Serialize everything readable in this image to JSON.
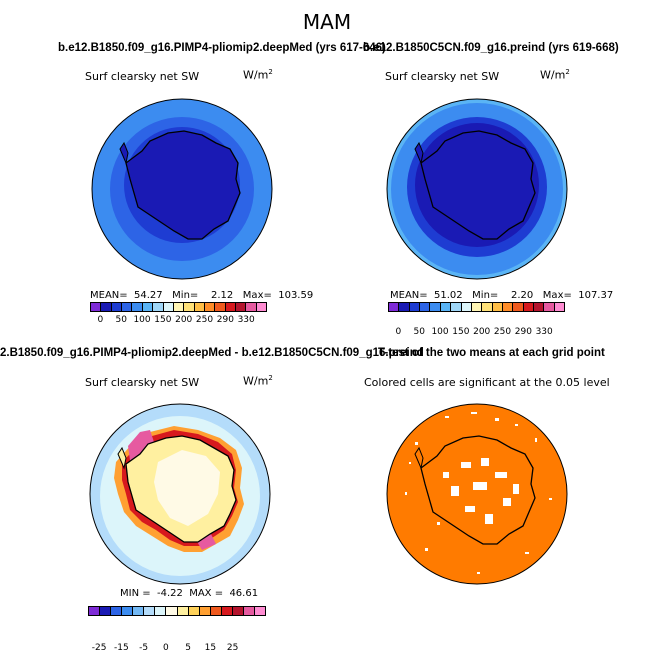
{
  "figure": {
    "title": "MAM"
  },
  "panels": {
    "p1": {
      "case_title": "b.e12.B1850.f09_g16.PIMP4-pliomip2.deepMed (yrs 617-646)",
      "variable": "Surf clearsky net SW",
      "units_base": "W/m",
      "units_exp": "2",
      "stats": "MEAN=  54.27   Min=    2.12   Max=  103.59",
      "colorbar_ticks": [
        "0",
        "50",
        "100",
        "150",
        "200",
        "250",
        "290",
        "330"
      ]
    },
    "p2": {
      "case_title": "b.e12.B1850C5CN.f09_g16.preind (yrs 619-668)",
      "variable": "Surf clearsky net SW",
      "units_base": "W/m",
      "units_exp": "2",
      "stats": "MEAN=  51.02   Min=    2.20   Max=  107.37",
      "colorbar_ticks": [
        "0",
        "50",
        "100",
        "150",
        "200",
        "250",
        "290",
        "330"
      ]
    },
    "p3": {
      "case_title": "2.B1850.f09_g16.PIMP4-pliomip2.deepMed - b.e12.B1850C5CN.f09_g16.preind",
      "variable": "Surf clearsky net SW",
      "units_base": "W/m",
      "units_exp": "2",
      "stats": "MIN =  -4.22  MAX =  46.61",
      "colorbar_ticks": [
        "-25",
        "-15",
        "-5",
        "0",
        "5",
        "15",
        "25"
      ]
    },
    "p4": {
      "case_title": "T-test of the two means at each grid point",
      "subtitle": "Colored cells are significant at the 0.05 level"
    }
  },
  "colors": {
    "abs_scale": [
      "#7e2bd6",
      "#1a1ab4",
      "#1e3cd2",
      "#2d64e6",
      "#3c8cf0",
      "#5ab4f5",
      "#9fd6f7",
      "#dcf5fa",
      "#fff5b4",
      "#ffe178",
      "#ffbe46",
      "#ff8c28",
      "#f05a1e",
      "#d7191e",
      "#b4142d",
      "#e65aa0",
      "#ff8cd2"
    ],
    "diff_scale": [
      "#7e2bd6",
      "#1a1ab4",
      "#2d64e6",
      "#3c8cf0",
      "#73b9f5",
      "#b4dcfa",
      "#dcf5fa",
      "#fffae6",
      "#fff0a0",
      "#ffd25a",
      "#ffa032",
      "#f05a1e",
      "#d7191e",
      "#b4142d",
      "#e65aa0",
      "#ff8cd2"
    ],
    "ttest_fill": "#ff7b00"
  }
}
